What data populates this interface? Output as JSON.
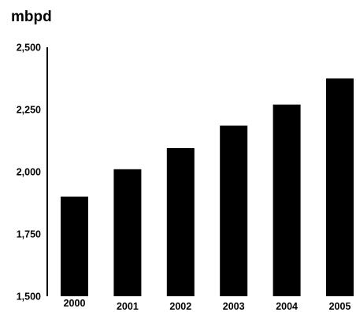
{
  "chart_data": {
    "type": "bar",
    "title": "",
    "unit_label": "mbpd",
    "xlabel": "",
    "ylabel": "",
    "categories": [
      "2000",
      "2001",
      "2002",
      "2003",
      "2004",
      "2005"
    ],
    "values": [
      1900,
      2010,
      2095,
      2185,
      2270,
      2375
    ],
    "ylim": [
      1500,
      2500
    ],
    "yticks": [
      1500,
      1750,
      2000,
      2250,
      2500
    ],
    "ytick_labels": [
      "1,500",
      "1,750",
      "2,000",
      "2,250",
      "2,500"
    ],
    "grid": false,
    "legend": "none",
    "bar_color": "#000000"
  }
}
